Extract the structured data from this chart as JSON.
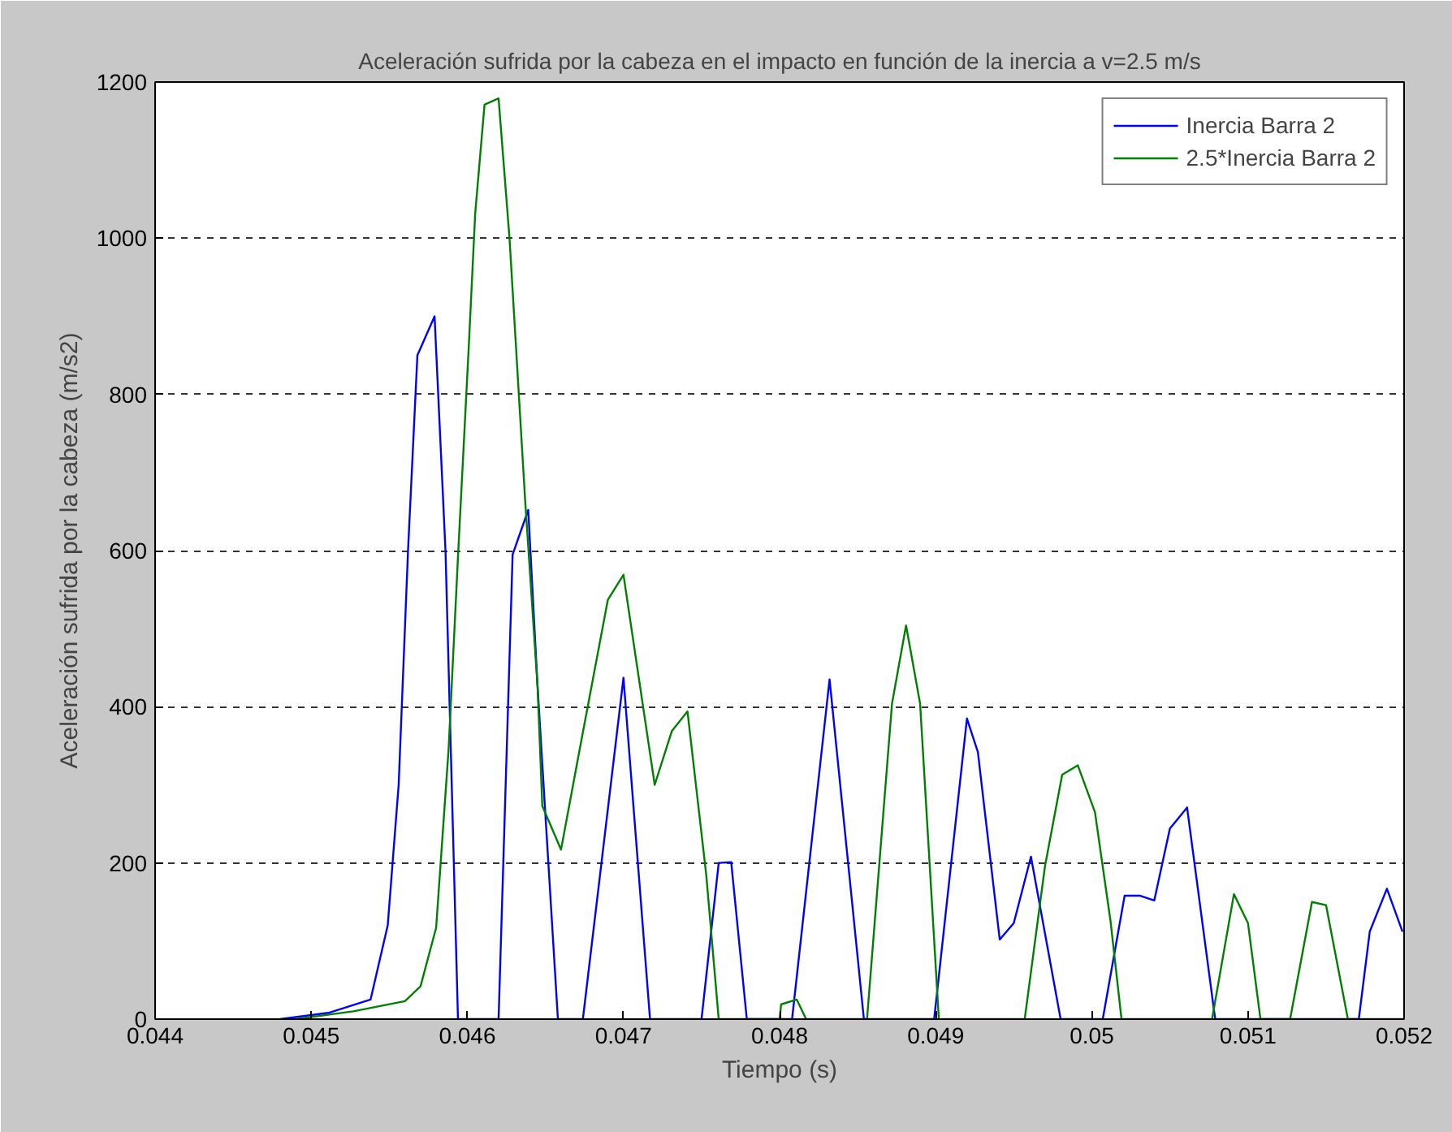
{
  "chart_data": {
    "type": "line",
    "title": "Aceleración sufrida por la cabeza en el impacto en función de la inercia a v=2.5 m/s",
    "xlabel": "Tiempo (s)",
    "ylabel": "Aceleración sufrida por la cabeza (m/s2)",
    "xlim": [
      0.044,
      0.052
    ],
    "xticks": [
      0.044,
      0.045,
      0.046,
      0.047,
      0.048,
      0.049,
      0.05,
      0.051,
      0.052
    ],
    "ylim": [
      0,
      1200
    ],
    "yticks": [
      0,
      200,
      400,
      600,
      800,
      1000,
      1200
    ],
    "grid": "y",
    "legend": "top right",
    "line_style": "solid",
    "marker": "none",
    "series": [
      {
        "name": "Inercia Barra 2",
        "color": "#0000ff",
        "x": [
          0.0448,
          0.04511,
          0.04538,
          0.04549,
          0.04556,
          0.04562,
          0.04568,
          0.04579,
          0.04586,
          0.04594,
          0.0462,
          0.04629,
          0.04639,
          0.04645,
          0.04658,
          0.04674,
          0.047,
          0.04717,
          0.0475,
          0.04761,
          0.04769,
          0.04779,
          0.04808,
          0.04832,
          0.04854,
          0.04899,
          0.0492,
          0.04927,
          0.04941,
          0.0495,
          0.04961,
          0.0498,
          0.05007,
          0.05021,
          0.05031,
          0.0504,
          0.0505,
          0.05061,
          0.05079,
          0.05171,
          0.05178,
          0.05189,
          0.05199
        ],
        "values": [
          0,
          8,
          25,
          120,
          300,
          600,
          850,
          900,
          600,
          0,
          0,
          595,
          652,
          425,
          0,
          0,
          437,
          0,
          0,
          200,
          201,
          0,
          0,
          435,
          0,
          0,
          385,
          342,
          102,
          123,
          208,
          0,
          0,
          158,
          158,
          152,
          244,
          271,
          0,
          0,
          112,
          167,
          112
        ]
      },
      {
        "name": "2.5*Inercia Barra 2",
        "color": "#008000",
        "x": [
          0.0449,
          0.04527,
          0.0456,
          0.0457,
          0.0458,
          0.04588,
          0.04594,
          0.04601,
          0.04605,
          0.04611,
          0.0462,
          0.04627,
          0.04637,
          0.04645,
          0.04648,
          0.0466,
          0.04672,
          0.0469,
          0.047,
          0.0472,
          0.04731,
          0.04741,
          0.04753,
          0.04761,
          0.048,
          0.04801,
          0.04811,
          0.04817,
          0.04856,
          0.04872,
          0.04881,
          0.0489,
          0.04902,
          0.04957,
          0.0497,
          0.04981,
          0.04991,
          0.05002,
          0.05012,
          0.05019,
          0.05077,
          0.05091,
          0.051,
          0.05108,
          0.05127,
          0.05141,
          0.0515,
          0.05164,
          0.052
        ],
        "values": [
          0,
          10,
          23,
          42,
          117,
          346,
          592,
          865,
          1031,
          1171,
          1179,
          1000,
          665,
          425,
          273,
          217,
          346,
          537,
          569,
          300,
          369,
          394,
          185,
          0,
          0,
          19,
          25,
          0,
          0,
          404,
          504,
          404,
          0,
          0,
          196,
          313,
          325,
          265,
          125,
          0,
          0,
          160,
          123,
          0,
          0,
          150,
          146,
          0,
          0
        ]
      }
    ]
  }
}
